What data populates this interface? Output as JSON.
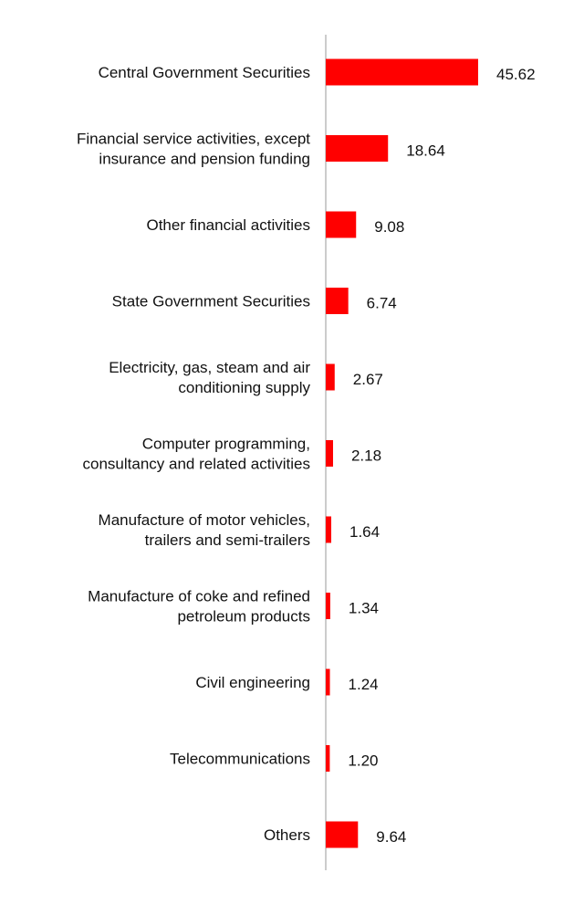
{
  "chart_data": {
    "type": "bar",
    "orientation": "horizontal",
    "categories": [
      "Central Government Securities",
      "Financial service activities, except insurance and pension funding",
      "Other financial activities",
      "State Government Securities",
      "Electricity, gas, steam and air conditioning supply",
      "Computer programming, consultancy and related activities",
      "Manufacture of motor vehicles, trailers and semi-trailers",
      "Manufacture of coke and refined petroleum products",
      "Civil engineering",
      "Telecommunications",
      "Others"
    ],
    "category_lines": [
      [
        "Central Government Securities"
      ],
      [
        "Financial service activities, except",
        "insurance and pension funding"
      ],
      [
        "Other financial activities"
      ],
      [
        "State Government Securities"
      ],
      [
        "Electricity, gas, steam and air",
        "conditioning supply"
      ],
      [
        "Computer programming,",
        "consultancy and related activities"
      ],
      [
        "Manufacture of motor vehicles,",
        "trailers and semi-trailers"
      ],
      [
        "Manufacture of coke and refined",
        "petroleum products"
      ],
      [
        "Civil engineering"
      ],
      [
        "Telecommunications"
      ],
      [
        "Others"
      ]
    ],
    "values": [
      45.62,
      18.64,
      9.08,
      6.74,
      2.67,
      2.18,
      1.64,
      1.34,
      1.24,
      1.2,
      9.64
    ],
    "value_labels": [
      "45.62",
      "18.64",
      "9.08",
      "6.74",
      "2.67",
      "2.18",
      "1.64",
      "1.34",
      "1.24",
      "1.20",
      "9.64"
    ],
    "xlim": [
      0,
      50
    ],
    "bar_color": "#ff0000",
    "axis_color": "#cccccc",
    "grid": false,
    "legend": "none",
    "title": "",
    "xlabel": "",
    "ylabel": ""
  }
}
